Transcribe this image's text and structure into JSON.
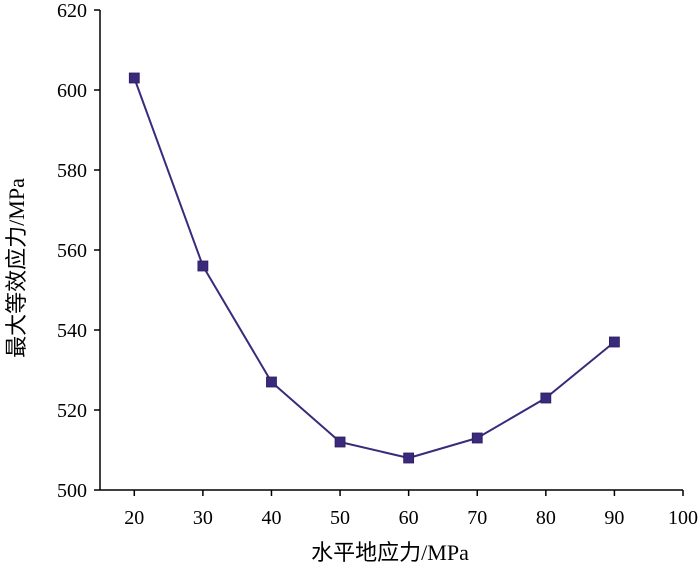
{
  "chart_data": {
    "type": "line",
    "x": [
      20,
      30,
      40,
      50,
      60,
      70,
      80,
      90
    ],
    "series": [
      {
        "values": [
          603,
          556,
          527,
          512,
          508,
          513,
          523,
          537
        ]
      }
    ],
    "xlabel": "水平地应力/MPa",
    "ylabel": "最大等效应力/MPa",
    "xlim": [
      15,
      100
    ],
    "ylim": [
      500,
      620
    ],
    "xticks": [
      20,
      30,
      40,
      50,
      60,
      70,
      80,
      90,
      100
    ],
    "yticks": [
      500,
      520,
      540,
      560,
      580,
      600,
      620
    ],
    "grid": false,
    "legend": "none",
    "marker": "square",
    "colors": {
      "line": "#3b2a7c",
      "marker": "#3b2a7c",
      "axis": "#000000"
    }
  }
}
